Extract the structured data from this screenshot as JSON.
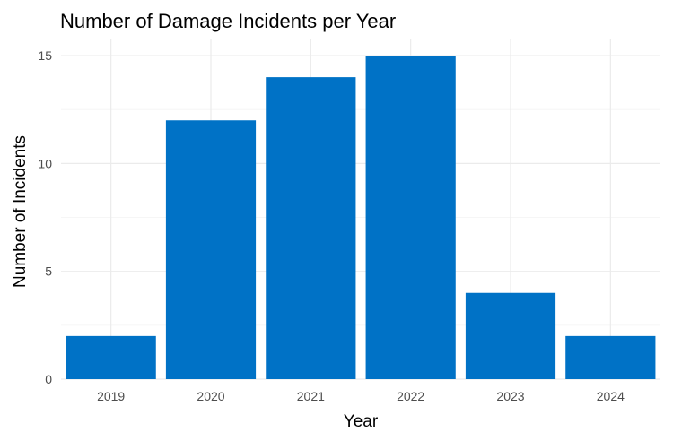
{
  "chart_data": {
    "type": "bar",
    "title": "Number of Damage Incidents per Year",
    "xlabel": "Year",
    "ylabel": "Number of Incidents",
    "categories": [
      "2019",
      "2020",
      "2021",
      "2022",
      "2023",
      "2024"
    ],
    "values": [
      2,
      12,
      14,
      15,
      4,
      2
    ],
    "ylim": [
      0,
      15.75
    ],
    "yticks": [
      0,
      5,
      10,
      15
    ],
    "grid": true,
    "bar_color": "#0072C6",
    "grid_color": "#EBEBEB",
    "background_color": "#FFFFFF"
  }
}
